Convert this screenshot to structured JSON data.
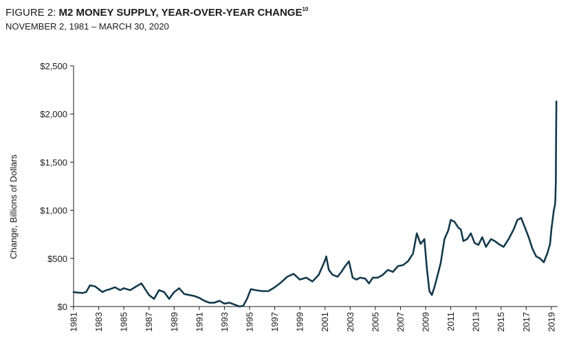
{
  "header": {
    "title_prefix": "FIGURE 2: ",
    "title_main": "M2 MONEY SUPPLY, YEAR-OVER-YEAR CHANGE",
    "title_footnote": "10",
    "subtitle": "NOVEMBER 2, 1981 – MARCH 30, 2020"
  },
  "colors": {
    "series": "#12394a",
    "axis": "#1a1a1a",
    "text": "#1a1a1a"
  },
  "chart_data": {
    "type": "line",
    "title": "M2 MONEY SUPPLY, YEAR-OVER-YEAR CHANGE",
    "subtitle": "NOVEMBER 2, 1981 – MARCH 30, 2020",
    "xlabel": "",
    "ylabel": "Change, Billions of Dollars",
    "xlim": [
      1981,
      2019.5
    ],
    "ylim": [
      0,
      2500
    ],
    "x_ticks": [
      1981,
      1983,
      1985,
      1987,
      1989,
      1991,
      1993,
      1995,
      1997,
      1999,
      2001,
      2003,
      2005,
      2007,
      2009,
      2011,
      2013,
      2015,
      2017,
      2019
    ],
    "x_tick_labels": [
      "1981",
      "1983",
      "1985",
      "1987",
      "1989",
      "1991",
      "1993",
      "1995",
      "1997",
      "1999",
      "2001",
      "2003",
      "2005",
      "2007",
      "2009",
      "2011",
      "2013",
      "2015",
      "2017",
      "2019"
    ],
    "y_ticks": [
      0,
      500,
      1000,
      1500,
      2000,
      2500
    ],
    "y_tick_labels": [
      "$0",
      "$500",
      "$1,000",
      "$1,500",
      "$2,000",
      "$2,500"
    ],
    "grid": false,
    "legend": "none",
    "series": [
      {
        "x": [
          1981.0,
          1981.3,
          1981.7,
          1982.0,
          1982.3,
          1982.7,
          1983.0,
          1983.3,
          1983.6,
          1983.9,
          1984.3,
          1984.7,
          1985.0,
          1985.5,
          1986.0,
          1986.4,
          1986.7,
          1987.0,
          1987.4,
          1987.8,
          1988.2,
          1988.6,
          1989.0,
          1989.4,
          1989.8,
          1990.2,
          1990.6,
          1991.0,
          1991.4,
          1991.8,
          1992.2,
          1992.6,
          1993.0,
          1993.4,
          1993.8,
          1994.2,
          1994.5,
          1994.8,
          1995.1,
          1995.5,
          1996.0,
          1996.5,
          1997.0,
          1997.5,
          1998.0,
          1998.5,
          1999.0,
          1999.5,
          2000.0,
          2000.5,
          2000.8,
          2001.0,
          2001.1,
          2001.3,
          2001.6,
          2002.0,
          2002.3,
          2002.6,
          2002.9,
          2003.2,
          2003.5,
          2003.8,
          2004.2,
          2004.5,
          2004.8,
          2005.2,
          2005.6,
          2006.0,
          2006.4,
          2006.8,
          2007.2,
          2007.6,
          2008.0,
          2008.3,
          2008.6,
          2008.9,
          2009.1,
          2009.3,
          2009.5,
          2009.7,
          2009.9,
          2010.2,
          2010.5,
          2010.8,
          2011.0,
          2011.3,
          2011.6,
          2011.8,
          2012.0,
          2012.3,
          2012.6,
          2012.9,
          2013.2,
          2013.5,
          2013.8,
          2014.2,
          2014.5,
          2014.8,
          2015.2,
          2015.6,
          2016.0,
          2016.3,
          2016.6,
          2016.9,
          2017.2,
          2017.5,
          2017.8,
          2018.1,
          2018.4,
          2018.7,
          2018.9,
          2019.0,
          2019.1,
          2019.2,
          2019.28,
          2019.32,
          2019.36,
          2019.38,
          2019.4
        ],
        "values": [
          150,
          145,
          140,
          150,
          220,
          210,
          180,
          150,
          170,
          180,
          200,
          170,
          190,
          170,
          210,
          240,
          180,
          120,
          80,
          170,
          150,
          80,
          150,
          190,
          130,
          120,
          110,
          90,
          60,
          40,
          40,
          60,
          30,
          40,
          20,
          0,
          10,
          80,
          180,
          170,
          160,
          160,
          200,
          250,
          310,
          340,
          280,
          300,
          260,
          330,
          420,
          480,
          520,
          380,
          330,
          310,
          360,
          420,
          470,
          300,
          280,
          300,
          290,
          240,
          300,
          300,
          330,
          380,
          360,
          420,
          430,
          470,
          550,
          760,
          650,
          700,
          400,
          160,
          120,
          200,
          300,
          450,
          700,
          790,
          900,
          880,
          820,
          800,
          680,
          700,
          760,
          660,
          640,
          720,
          620,
          700,
          680,
          650,
          620,
          700,
          800,
          900,
          920,
          820,
          720,
          600,
          520,
          500,
          460,
          560,
          650,
          800,
          900,
          1000,
          1050,
          1100,
          1300,
          1800,
          2130
        ]
      }
    ]
  }
}
